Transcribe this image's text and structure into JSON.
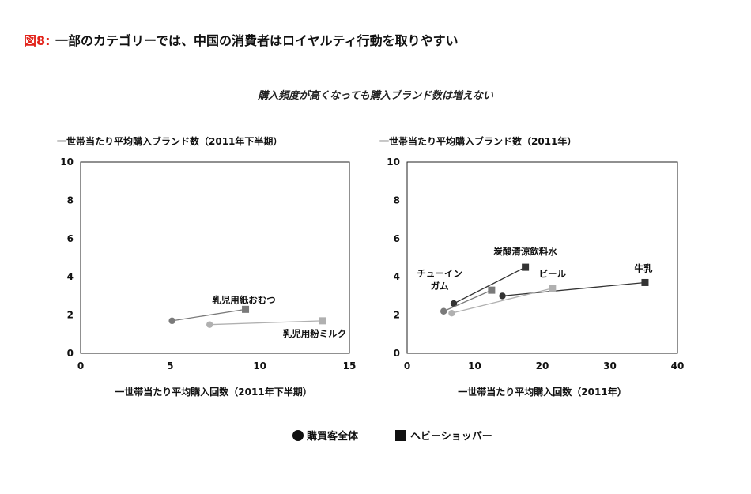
{
  "figure": {
    "label": "図8:",
    "title": "一部のカテゴリーでは、中国の消費者はロイヤルティ行動を取りやすい",
    "subtitle": "購入頻度が高くなっても購入ブランド数は増えない",
    "label_color": "#e2231a"
  },
  "legend": {
    "all": "購買客全体",
    "heavy": "ヘビーショッパー"
  },
  "colors": {
    "dark": "#333333",
    "mid": "#7a7a7a",
    "light": "#b0b0b0",
    "axis": "#222222"
  },
  "chart_data": [
    {
      "type": "scatter",
      "title": "",
      "ylabel": "一世帯当たり平均購入ブランド数（2011年下半期）",
      "xlabel": "一世帯当たり平均購入回数（2011年下半期）",
      "xlim": [
        0,
        15
      ],
      "ylim": [
        0,
        10
      ],
      "xticks": [
        0,
        5,
        10,
        15
      ],
      "yticks": [
        0,
        2,
        4,
        6,
        8,
        10
      ],
      "grid": false,
      "series": [
        {
          "label": "乳児用紙おむつ",
          "label_anchor": "heavy",
          "shade": "mid",
          "all": {
            "x": 5.1,
            "y": 1.7
          },
          "heavy": {
            "x": 9.2,
            "y": 2.3
          }
        },
        {
          "label": "乳児用粉ミルク",
          "label_anchor": "heavy",
          "shade": "light",
          "all": {
            "x": 7.2,
            "y": 1.5
          },
          "heavy": {
            "x": 13.5,
            "y": 1.7
          }
        }
      ]
    },
    {
      "type": "scatter",
      "title": "",
      "ylabel": "一世帯当たり平均購入ブランド数（2011年）",
      "xlabel": "一世帯当たり平均購入回数（2011年）",
      "xlim": [
        0,
        40
      ],
      "ylim": [
        0,
        10
      ],
      "xticks": [
        0,
        10,
        20,
        30,
        40
      ],
      "yticks": [
        0,
        2,
        4,
        6,
        8,
        10
      ],
      "grid": false,
      "series": [
        {
          "label": "炭酸清涼飲料水",
          "label_anchor": "heavy",
          "shade": "dark",
          "all": {
            "x": 6.9,
            "y": 2.6
          },
          "heavy": {
            "x": 17.5,
            "y": 4.5
          }
        },
        {
          "label": "牛乳",
          "label_anchor": "heavy",
          "shade": "dark",
          "all": {
            "x": 14.1,
            "y": 3.0
          },
          "heavy": {
            "x": 35.2,
            "y": 3.7
          }
        },
        {
          "label": "ビール",
          "label_anchor": "heavy",
          "shade": "light",
          "all": {
            "x": 6.6,
            "y": 2.1
          },
          "heavy": {
            "x": 21.5,
            "y": 3.4
          }
        },
        {
          "label": "チューイン\nガム",
          "label_anchor": "all",
          "shade": "mid",
          "all": {
            "x": 5.4,
            "y": 2.2
          },
          "heavy": {
            "x": 12.5,
            "y": 3.3
          }
        }
      ]
    }
  ]
}
